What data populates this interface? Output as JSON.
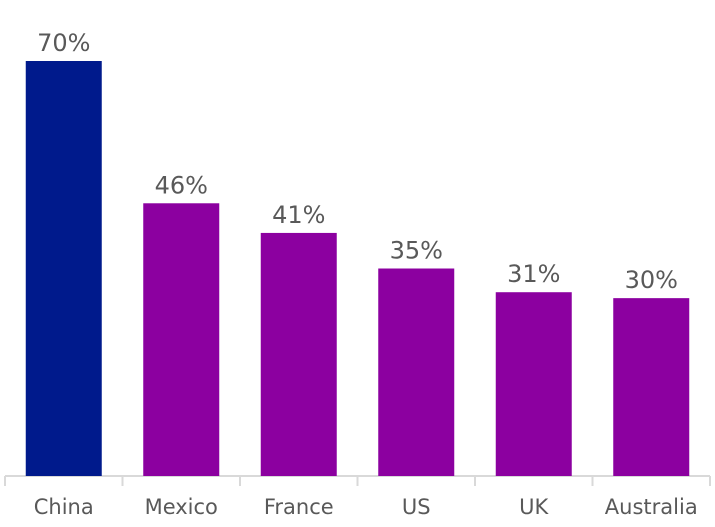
{
  "chart_data": {
    "type": "bar",
    "title": "",
    "xlabel": "",
    "ylabel": "",
    "categories": [
      "China",
      "Mexico",
      "France",
      "US",
      "UK",
      "Australia"
    ],
    "values": [
      70,
      46,
      41,
      35,
      31,
      30
    ],
    "value_labels": [
      "70%",
      "46%",
      "41%",
      "35%",
      "31%",
      "30%"
    ],
    "ylim": [
      0,
      70
    ],
    "grid": false,
    "legend": "none",
    "colors": {
      "highlight": "#001A8C",
      "default": "#8C00A0",
      "axis": "#D9D9D9",
      "text": "#595959"
    },
    "highlight_index": 0
  }
}
